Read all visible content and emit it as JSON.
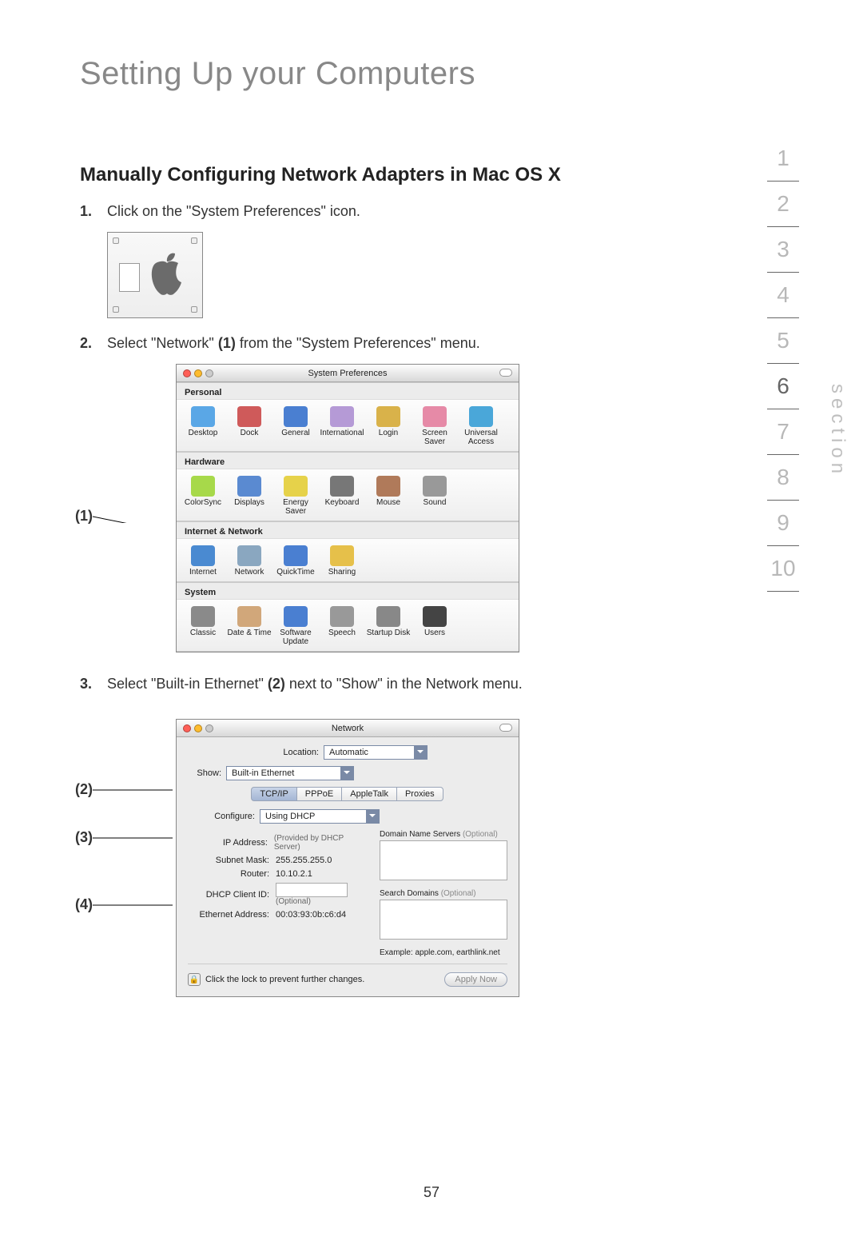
{
  "page": {
    "title": "Setting Up your Computers",
    "heading": "Manually Configuring Network Adapters in Mac OS X",
    "number": "57"
  },
  "steps": {
    "s1_num": "1.",
    "s1_text": "Click on the \"System Preferences\" icon.",
    "s2_num": "2.",
    "s2_pre": "Select \"Network\" ",
    "s2_bold": "(1)",
    "s2_post": " from the \"System Preferences\" menu.",
    "s3_num": "3.",
    "s3_pre": "Select \"Built-in Ethernet\" ",
    "s3_bold": "(2)",
    "s3_post": " next to \"Show\" in the Network menu."
  },
  "callouts": {
    "c1": "(1)",
    "c2": "(2)",
    "c3": "(3)",
    "c4": "(4)"
  },
  "sysprefs": {
    "title": "System Preferences",
    "sections": {
      "personal": {
        "label": "Personal",
        "items": [
          {
            "label": "Desktop",
            "color": "#5aa7e6"
          },
          {
            "label": "Dock",
            "color": "#cf5a5a"
          },
          {
            "label": "General",
            "color": "#4a7fd1"
          },
          {
            "label": "International",
            "color": "#b59ad6"
          },
          {
            "label": "Login",
            "color": "#d9b24a"
          },
          {
            "label": "Screen Saver",
            "color": "#e68aa7"
          },
          {
            "label": "Universal Access",
            "color": "#4aa7d9"
          }
        ]
      },
      "hardware": {
        "label": "Hardware",
        "items": [
          {
            "label": "ColorSync",
            "color": "#a7d94a"
          },
          {
            "label": "Displays",
            "color": "#5a8ad1"
          },
          {
            "label": "Energy Saver",
            "color": "#e6d24a"
          },
          {
            "label": "Keyboard",
            "color": "#777"
          },
          {
            "label": "Mouse",
            "color": "#b07a5a"
          },
          {
            "label": "Sound",
            "color": "#999"
          }
        ]
      },
      "internet": {
        "label": "Internet & Network",
        "items": [
          {
            "label": "Internet",
            "color": "#4a8ad1"
          },
          {
            "label": "Network",
            "color": "#8aa7c0"
          },
          {
            "label": "QuickTime",
            "color": "#4a7fd1"
          },
          {
            "label": "Sharing",
            "color": "#e6c04a"
          }
        ]
      },
      "system": {
        "label": "System",
        "items": [
          {
            "label": "Classic",
            "color": "#8a8a8a"
          },
          {
            "label": "Date & Time",
            "color": "#d1a77a"
          },
          {
            "label": "Software Update",
            "color": "#4a7fd1"
          },
          {
            "label": "Speech",
            "color": "#999"
          },
          {
            "label": "Startup Disk",
            "color": "#888"
          },
          {
            "label": "Users",
            "color": "#444"
          }
        ]
      }
    }
  },
  "network": {
    "title": "Network",
    "location_label": "Location:",
    "location_value": "Automatic",
    "show_label": "Show:",
    "show_value": "Built-in Ethernet",
    "tabs": [
      "TCP/IP",
      "PPPoE",
      "AppleTalk",
      "Proxies"
    ],
    "active_tab": 0,
    "configure_label": "Configure:",
    "configure_value": "Using DHCP",
    "ip_label": "IP Address:",
    "ip_sub": "(Provided by DHCP Server)",
    "subnet_label": "Subnet Mask:",
    "subnet_value": "255.255.255.0",
    "router_label": "Router:",
    "router_value": "10.10.2.1",
    "dhcp_label": "DHCP Client ID:",
    "dhcp_sub": "(Optional)",
    "eth_label": "Ethernet Address:",
    "eth_value": "00:03:93:0b:c6:d4",
    "dns_label": "Domain Name Servers",
    "dns_opt": "(Optional)",
    "search_label": "Search Domains",
    "search_opt": "(Optional)",
    "example": "Example: apple.com, earthlink.net",
    "lock_text": "Click the lock to prevent further changes.",
    "apply": "Apply Now"
  },
  "nav": {
    "items": [
      "1",
      "2",
      "3",
      "4",
      "5",
      "6",
      "7",
      "8",
      "9",
      "10"
    ],
    "active": 5,
    "label": "section"
  },
  "colors": {
    "title_gray": "#888888",
    "nav_gray": "#b8b8b8",
    "nav_active": "#666666",
    "win_bg": "#ececec"
  }
}
